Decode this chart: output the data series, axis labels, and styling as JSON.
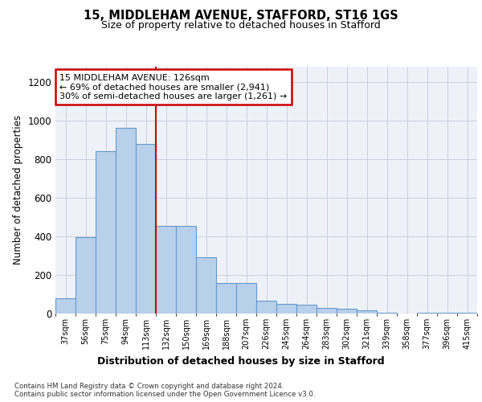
{
  "title1": "15, MIDDLEHAM AVENUE, STAFFORD, ST16 1GS",
  "title2": "Size of property relative to detached houses in Stafford",
  "xlabel": "Distribution of detached houses by size in Stafford",
  "ylabel": "Number of detached properties",
  "categories": [
    "37sqm",
    "56sqm",
    "75sqm",
    "94sqm",
    "113sqm",
    "132sqm",
    "150sqm",
    "169sqm",
    "188sqm",
    "207sqm",
    "226sqm",
    "245sqm",
    "264sqm",
    "283sqm",
    "302sqm",
    "321sqm",
    "339sqm",
    "358sqm",
    "377sqm",
    "396sqm",
    "415sqm"
  ],
  "values": [
    80,
    395,
    840,
    960,
    880,
    455,
    455,
    290,
    160,
    160,
    65,
    50,
    45,
    30,
    25,
    15,
    5,
    0,
    5,
    5,
    5
  ],
  "bar_color": "#b8d0ea",
  "bar_edge_color": "#6699cc",
  "vline_color": "#cc0000",
  "annotation_text": "15 MIDDLEHAM AVENUE: 126sqm\n← 69% of detached houses are smaller (2,941)\n30% of semi-detached houses are larger (1,261) →",
  "annotation_box_color": "#ffffff",
  "annotation_box_edge": "#cc0000",
  "footnote": "Contains HM Land Registry data © Crown copyright and database right 2024.\nContains public sector information licensed under the Open Government Licence v3.0.",
  "ylim": [
    0,
    1280
  ],
  "yticks": [
    0,
    200,
    400,
    600,
    800,
    1000,
    1200
  ],
  "plot_bg_color": "#eef2f8"
}
